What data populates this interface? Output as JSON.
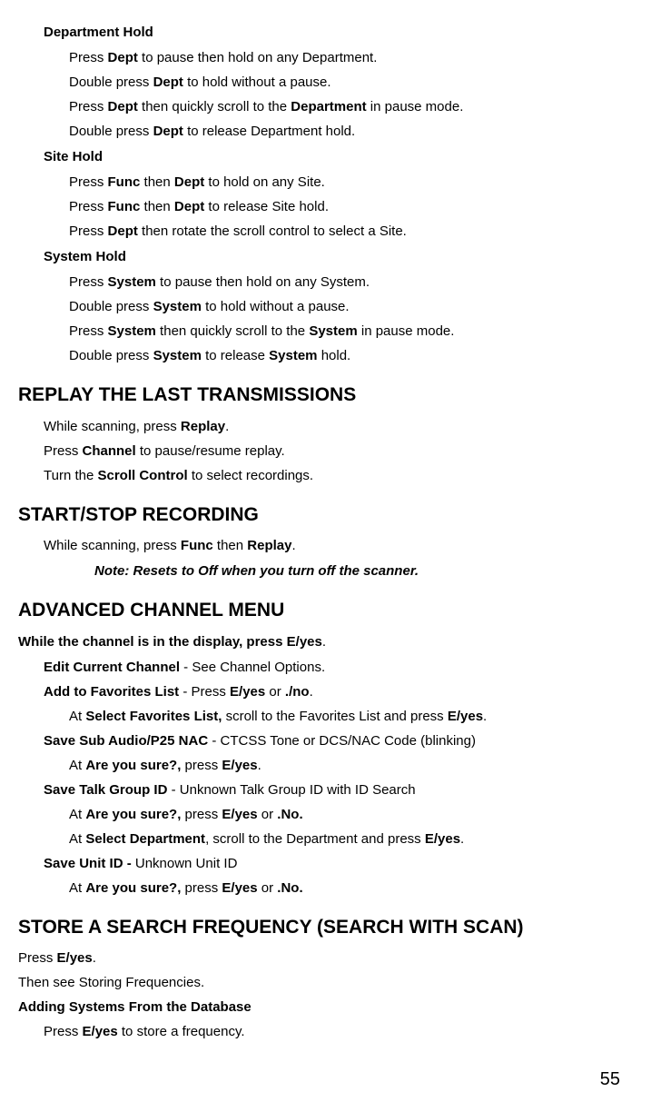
{
  "dept_hold": {
    "title": "Department Hold",
    "l1a": "Press ",
    "l1b": "Dept",
    "l1c": " to pause then hold on any Department.",
    "l2a": "Double press ",
    "l2b": "Dept",
    "l2c": " to hold without a pause.",
    "l3a": "Press ",
    "l3b": "Dept",
    "l3c": " then quickly scroll to the ",
    "l3d": "Department",
    "l3e": " in pause mode.",
    "l4a": "Double press ",
    "l4b": "Dept",
    "l4c": " to release Department hold."
  },
  "site_hold": {
    "title": "Site Hold",
    "l1a": "Press ",
    "l1b": "Func",
    "l1c": " then ",
    "l1d": "Dept",
    "l1e": " to hold on any Site.",
    "l2a": "Press ",
    "l2b": "Func",
    "l2c": " then ",
    "l2d": "Dept",
    "l2e": " to release Site hold.",
    "l3a": "Press ",
    "l3b": "Dept",
    "l3c": " then rotate the scroll control to select a Site."
  },
  "sys_hold": {
    "title": "System Hold",
    "l1a": "Press ",
    "l1b": "System",
    "l1c": " to pause then hold on any System.",
    "l2a": "Double press ",
    "l2b": "System",
    "l2c": " to hold without a pause.",
    "l3a": "Press ",
    "l3b": "System",
    "l3c": " then quickly scroll to the ",
    "l3d": "System",
    "l3e": " in pause mode.",
    "l4a": "Double press ",
    "l4b": "System",
    "l4c": " to release ",
    "l4d": "System",
    "l4e": " hold."
  },
  "replay": {
    "heading": "REPLAY THE LAST TRANSMISSIONS",
    "l1a": "While scanning, press ",
    "l1b": "Replay",
    "l1c": ".",
    "l2a": "Press ",
    "l2b": "Channel",
    "l2c": " to pause/resume replay.",
    "l3a": "Turn the ",
    "l3b": "Scroll Control",
    "l3c": " to select recordings."
  },
  "recording": {
    "heading": "START/STOP RECORDING",
    "l1a": "While scanning, press ",
    "l1b": "Func",
    "l1c": " then ",
    "l1d": "Replay",
    "l1e": ".",
    "note": "Note: Resets to Off when you turn off the scanner."
  },
  "adv": {
    "heading": "ADVANCED CHANNEL MENU",
    "intro_a": "While the channel is in the display, press ",
    "intro_b": "E/yes",
    "intro_c": ".",
    "ecc_a": "Edit Current Channel",
    "ecc_b": " - See Channel Options.",
    "afl_a": "Add to Favorites List",
    "afl_b": " - Press ",
    "afl_c": "E/yes",
    "afl_d": " or ",
    "afl_e": "./no",
    "afl_f": ".",
    "sfl_a": "At ",
    "sfl_b": "Select Favorites List,",
    "sfl_c": " scroll to the Favorites List and press ",
    "sfl_d": "E/yes",
    "sfl_e": ".",
    "ssa_a": "Save Sub Audio/P25 NAC",
    "ssa_b": " - CTCSS Tone or DCS/NAC Code (blinking)",
    "ays1_a": "At ",
    "ays1_b": "Are you sure?,",
    "ays1_c": " press ",
    "ays1_d": "E/yes",
    "ays1_e": ".",
    "stg_a": "Save Talk Group ID",
    "stg_b": " - Unknown Talk Group ID with ID Search",
    "ays2_a": "At ",
    "ays2_b": "Are you sure?,",
    "ays2_c": " press ",
    "ays2_d": "E/yes",
    "ays2_e": " or ",
    "ays2_f": ".No.",
    "sd_a": "At ",
    "sd_b": "Select Department",
    "sd_c": ", scroll to the Department and press ",
    "sd_d": "E/yes",
    "sd_e": ".",
    "sui_a": "Save Unit ID - ",
    "sui_b": "Unknown Unit ID",
    "ays3_a": "At ",
    "ays3_b": "Are you sure?,",
    "ays3_c": " press ",
    "ays3_d": "E/yes",
    "ays3_e": " or ",
    "ays3_f": ".No."
  },
  "store": {
    "heading": "STORE A SEARCH FREQUENCY (SEARCH WITH SCAN)",
    "l1a": "Press ",
    "l1b": "E/yes",
    "l1c": ".",
    "l2": "Then see Storing Frequencies.",
    "sub": "Adding Systems From the Database",
    "l3a": "Press ",
    "l3b": "E/yes",
    "l3c": " to store a frequency."
  },
  "page": "55"
}
